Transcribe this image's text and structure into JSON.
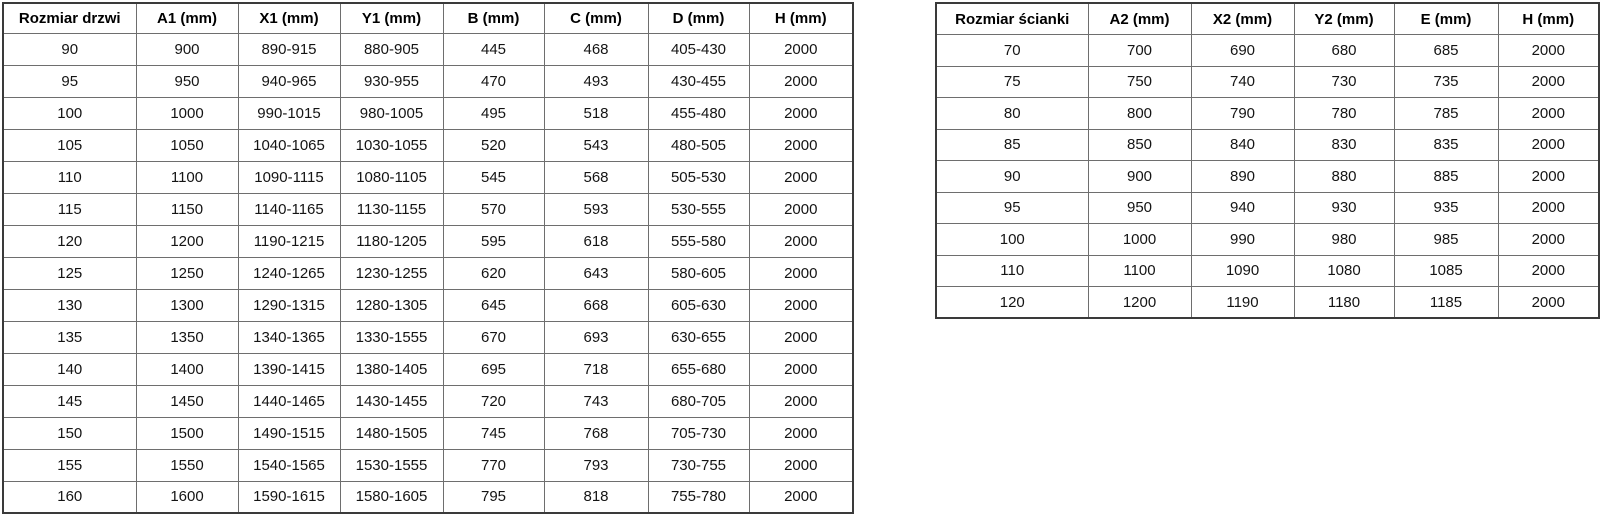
{
  "colors": {
    "background": "#ffffff",
    "outer_border": "#3a3a3a",
    "inner_border": "#6e6e6e",
    "text": "#141414"
  },
  "door_table": {
    "headers": [
      "Rozmiar drzwi",
      "A1 (mm)",
      "X1 (mm)",
      "Y1 (mm)",
      "B (mm)",
      "C (mm)",
      "D (mm)",
      "H (mm)"
    ],
    "rows": [
      [
        "90",
        "900",
        "890-915",
        "880-905",
        "445",
        "468",
        "405-430",
        "2000"
      ],
      [
        "95",
        "950",
        "940-965",
        "930-955",
        "470",
        "493",
        "430-455",
        "2000"
      ],
      [
        "100",
        "1000",
        "990-1015",
        "980-1005",
        "495",
        "518",
        "455-480",
        "2000"
      ],
      [
        "105",
        "1050",
        "1040-1065",
        "1030-1055",
        "520",
        "543",
        "480-505",
        "2000"
      ],
      [
        "110",
        "1100",
        "1090-1115",
        "1080-1105",
        "545",
        "568",
        "505-530",
        "2000"
      ],
      [
        "115",
        "1150",
        "1140-1165",
        "1130-1155",
        "570",
        "593",
        "530-555",
        "2000"
      ],
      [
        "120",
        "1200",
        "1190-1215",
        "1180-1205",
        "595",
        "618",
        "555-580",
        "2000"
      ],
      [
        "125",
        "1250",
        "1240-1265",
        "1230-1255",
        "620",
        "643",
        "580-605",
        "2000"
      ],
      [
        "130",
        "1300",
        "1290-1315",
        "1280-1305",
        "645",
        "668",
        "605-630",
        "2000"
      ],
      [
        "135",
        "1350",
        "1340-1365",
        "1330-1555",
        "670",
        "693",
        "630-655",
        "2000"
      ],
      [
        "140",
        "1400",
        "1390-1415",
        "1380-1405",
        "695",
        "718",
        "655-680",
        "2000"
      ],
      [
        "145",
        "1450",
        "1440-1465",
        "1430-1455",
        "720",
        "743",
        "680-705",
        "2000"
      ],
      [
        "150",
        "1500",
        "1490-1515",
        "1480-1505",
        "745",
        "768",
        "705-730",
        "2000"
      ],
      [
        "155",
        "1550",
        "1540-1565",
        "1530-1555",
        "770",
        "793",
        "730-755",
        "2000"
      ],
      [
        "160",
        "1600",
        "1590-1615",
        "1580-1605",
        "795",
        "818",
        "755-780",
        "2000"
      ]
    ]
  },
  "wall_table": {
    "headers": [
      "Rozmiar ścianki",
      "A2 (mm)",
      "X2 (mm)",
      "Y2 (mm)",
      "E (mm)",
      "H (mm)"
    ],
    "rows": [
      [
        "70",
        "700",
        "690",
        "680",
        "685",
        "2000"
      ],
      [
        "75",
        "750",
        "740",
        "730",
        "735",
        "2000"
      ],
      [
        "80",
        "800",
        "790",
        "780",
        "785",
        "2000"
      ],
      [
        "85",
        "850",
        "840",
        "830",
        "835",
        "2000"
      ],
      [
        "90",
        "900",
        "890",
        "880",
        "885",
        "2000"
      ],
      [
        "95",
        "950",
        "940",
        "930",
        "935",
        "2000"
      ],
      [
        "100",
        "1000",
        "990",
        "980",
        "985",
        "2000"
      ],
      [
        "110",
        "1100",
        "1090",
        "1080",
        "1085",
        "2000"
      ],
      [
        "120",
        "1200",
        "1190",
        "1180",
        "1185",
        "2000"
      ]
    ]
  }
}
